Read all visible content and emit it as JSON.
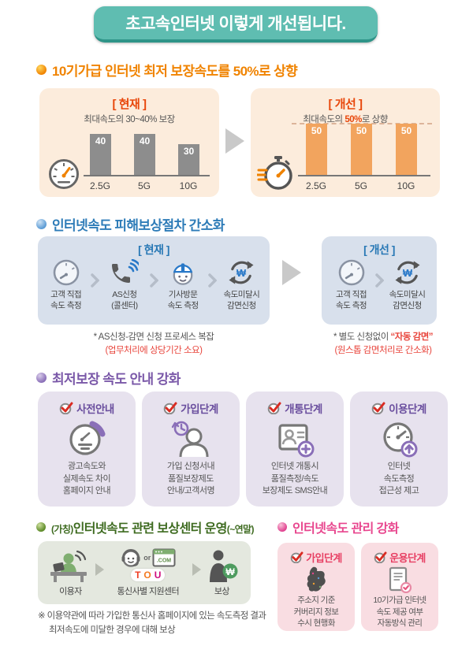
{
  "header": {
    "title": "초고속인터넷 이렇게 개선됩니다."
  },
  "glyphs": {
    "won": "₩"
  },
  "section_speed": {
    "title": "10기가급 인터넷 최저 보장속도를 50%로 상향",
    "current": {
      "label": "[ 현재 ]",
      "subtitle": "최대속도의 30~40% 보장"
    },
    "improved": {
      "label": "[ 개선 ]",
      "subtitle_prefix": "최대속도의 ",
      "subtitle_highlight": "50%",
      "subtitle_suffix": "로 상향"
    },
    "chart_data": [
      {
        "type": "bar",
        "title": "현재: 최대속도의 30~40% 보장",
        "categories": [
          "2.5G",
          "5G",
          "10G"
        ],
        "values": [
          40,
          40,
          30
        ],
        "bar_color": "#8d8d8d",
        "ylim": [
          0,
          50
        ],
        "grid": false
      },
      {
        "type": "bar",
        "title": "개선: 최대속도의 50%로 상향",
        "categories": [
          "2.5G",
          "5G",
          "10G"
        ],
        "values": [
          50,
          50,
          50
        ],
        "bar_color": "#f2a45e",
        "ylim": [
          0,
          50
        ],
        "grid": false,
        "dashed_guide_y": 50
      }
    ]
  },
  "section_process": {
    "title": "인터넷속도 피해보상절차 간소화",
    "current": {
      "label": "[ 현재 ]",
      "steps": [
        {
          "line1": "고객 직접",
          "line2": "속도 측정"
        },
        {
          "line1": "AS신청",
          "line2": "(콜센터)"
        },
        {
          "line1": "기사방문",
          "line2": "속도 측정"
        },
        {
          "line1": "속도미달시",
          "line2": "감면신청"
        }
      ],
      "note_line1": "* AS신청-감면 신청 프로세스 복잡",
      "note_line2": "(업무처리에 상당기간 소요)"
    },
    "improved": {
      "label": "[ 개선 ]",
      "steps": [
        {
          "line1": "고객 직접",
          "line2": "속도 측정"
        },
        {
          "line1": "속도미달시",
          "line2": "감면신청"
        }
      ],
      "note_prefix": "* 별도 신청없이 ",
      "note_highlight": "“자동 감면”",
      "note_line2": "(원스톱 감면처리로 간소화)"
    }
  },
  "section_guide": {
    "title": "최저보장 속도 안내 강화",
    "cards": [
      {
        "stage": "사전안내",
        "line1": "광고속도와",
        "line2": "실제속도 차이",
        "line3": "홈페이지 안내"
      },
      {
        "stage": "가입단계",
        "line1": "가입 신청서내",
        "line2": "품질보장제도",
        "line3": "안내/고객서명"
      },
      {
        "stage": "개통단계",
        "line1": "인터넷 개통시",
        "line2": "품질측정/속도",
        "line3": "보장제도 SMS안내"
      },
      {
        "stage": "이용단계",
        "line1": "인터넷",
        "line2": "속도측정",
        "line3": "접근성 제고"
      }
    ]
  },
  "section_center": {
    "title_small_prefix": "(가칭)",
    "title": "인터넷속도 관련 보상센터 운영",
    "title_small_suffix": "(~연말)",
    "or_text": "or",
    "com_text": ".COM",
    "logos": [
      "T",
      "O",
      "U"
    ],
    "flow": [
      {
        "label": "이용자"
      },
      {
        "label": "통신사별 지원센터"
      },
      {
        "label": "보상"
      }
    ],
    "note_line1": "※ 이용약관에 따라 가입한 통신사 홈페이지에 있는 속도측정 결과",
    "note_line2": "최저속도에 미달한 경우에 대해 보상"
  },
  "section_manage": {
    "title": "인터넷속도 관리 강화",
    "cards": [
      {
        "stage": "가입단계",
        "line1": "주소지 기준",
        "line2": "커버리지 정보",
        "line3": "수시 현행화"
      },
      {
        "stage": "운용단계",
        "line1": "10기가급 인터넷",
        "line2": "속도 제공 여부",
        "line3": "자동방식 관리"
      }
    ]
  },
  "colors": {
    "header_teal": "#5fbdb1",
    "section1_orange": "#f08300",
    "panel_peach": "#fcecdc",
    "bar_gray": "#8d8d8d",
    "bar_orange": "#f2a45e",
    "section2_blue": "#2e7cb8",
    "panel_blue": "#d8e0ec",
    "section3_purple": "#7a58a8",
    "card_purple": "#e7e2ee",
    "section4_green": "#3e6b20",
    "panel_green": "#e4e8df",
    "section4_pink": "#e8468e",
    "card_pink": "#f9dde2",
    "note_red": "#e8453c"
  }
}
